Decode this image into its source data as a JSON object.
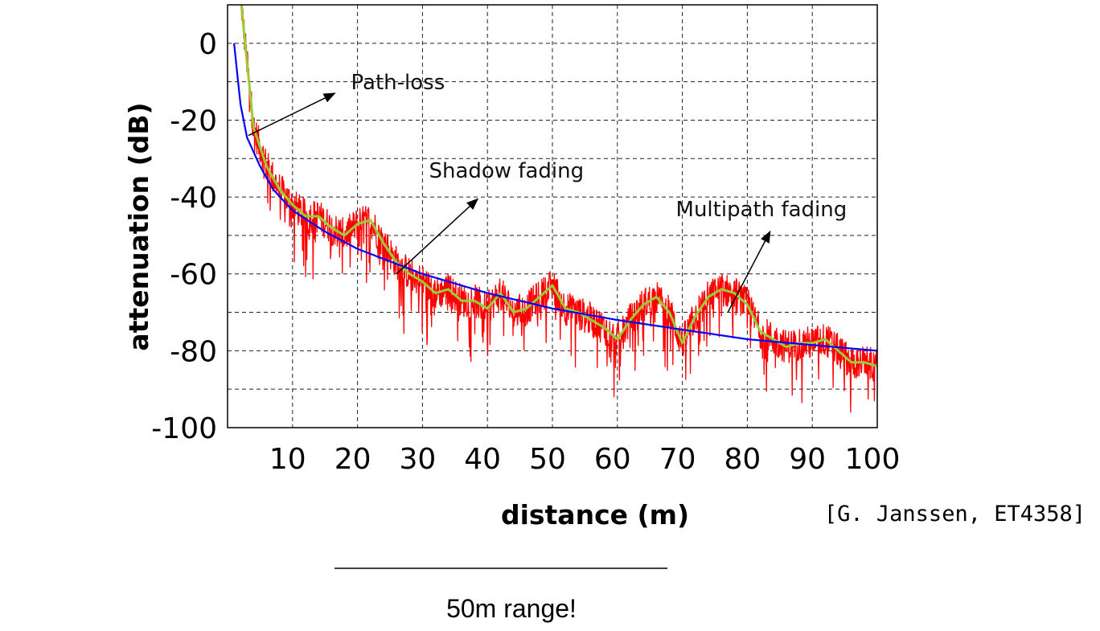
{
  "chart_data": {
    "type": "line",
    "title": "",
    "xlabel": "distance (m)",
    "ylabel": "attenuation (dB)",
    "xlim": [
      0,
      100
    ],
    "ylim": [
      -100,
      10
    ],
    "grid": true,
    "x_ticks": [
      10,
      20,
      30,
      40,
      50,
      60,
      70,
      80,
      90,
      100
    ],
    "y_ticks": [
      0,
      -20,
      -40,
      -60,
      -80,
      -100
    ],
    "series": [
      {
        "color": "#0000ff",
        "x": [
          1,
          2,
          3,
          5,
          7,
          10,
          15,
          20,
          30,
          40,
          50,
          60,
          70,
          80,
          90,
          100
        ],
        "y": [
          0,
          -16,
          -24.5,
          -32,
          -38,
          -43.5,
          -49,
          -53.5,
          -60,
          -65,
          -69,
          -72,
          -74.5,
          -77,
          -78.5,
          -80
        ]
      },
      {
        "color": "#9acd32",
        "x": [
          2,
          3,
          4,
          6,
          8,
          10,
          12,
          14,
          16,
          18,
          20,
          22,
          24,
          26,
          28,
          30,
          32,
          34,
          36,
          38,
          40,
          42,
          44,
          46,
          48,
          50,
          52,
          54,
          56,
          58,
          60,
          62,
          64,
          66,
          68,
          70,
          72,
          74,
          76,
          78,
          80,
          82,
          84,
          86,
          88,
          90,
          92,
          94,
          96,
          98,
          100
        ],
        "y": [
          12,
          -5,
          -22,
          -32,
          -38,
          -42,
          -45,
          -45,
          -48,
          -50,
          -47,
          -46,
          -52,
          -57,
          -60,
          -62,
          -65,
          -64,
          -67,
          -67,
          -69,
          -65,
          -70,
          -69,
          -66,
          -63,
          -69,
          -70,
          -72,
          -74,
          -77,
          -72,
          -68,
          -66,
          -70,
          -78,
          -71,
          -66,
          -64,
          -65,
          -68,
          -75,
          -77,
          -79,
          -78,
          -78,
          -77,
          -80,
          -83,
          -83,
          -84
        ]
      },
      {
        "color": "#ff0000",
        "x": [
          2,
          3,
          4,
          6,
          8,
          10,
          12,
          14,
          16,
          18,
          20,
          22,
          24,
          26,
          28,
          30,
          32,
          34,
          36,
          38,
          40,
          42,
          44,
          46,
          48,
          50,
          52,
          54,
          56,
          58,
          60,
          62,
          64,
          66,
          68,
          70,
          72,
          74,
          76,
          78,
          80,
          82,
          84,
          86,
          88,
          90,
          92,
          94,
          96,
          98,
          100
        ],
        "y": [
          12,
          -5,
          -22,
          -32,
          -38,
          -42,
          -45,
          -45,
          -48,
          -50,
          -47,
          -46,
          -52,
          -57,
          -60,
          -62,
          -65,
          -64,
          -67,
          -67,
          -69,
          -65,
          -70,
          -69,
          -66,
          -63,
          -69,
          -70,
          -72,
          -74,
          -77,
          -72,
          -68,
          -66,
          -70,
          -78,
          -71,
          -66,
          -64,
          -65,
          -68,
          -75,
          -77,
          -79,
          -78,
          -78,
          -77,
          -80,
          -83,
          -83,
          -84
        ]
      }
    ],
    "annotations": [
      {
        "text": "Path-loss",
        "x": 19,
        "y": -12
      },
      {
        "text": "Shadow fading",
        "x": 31,
        "y": -35
      },
      {
        "text": "Multipath fading",
        "x": 69,
        "y": -45
      }
    ]
  },
  "citation": "[G. Janssen, ET4358]",
  "range_note": "50m range!"
}
